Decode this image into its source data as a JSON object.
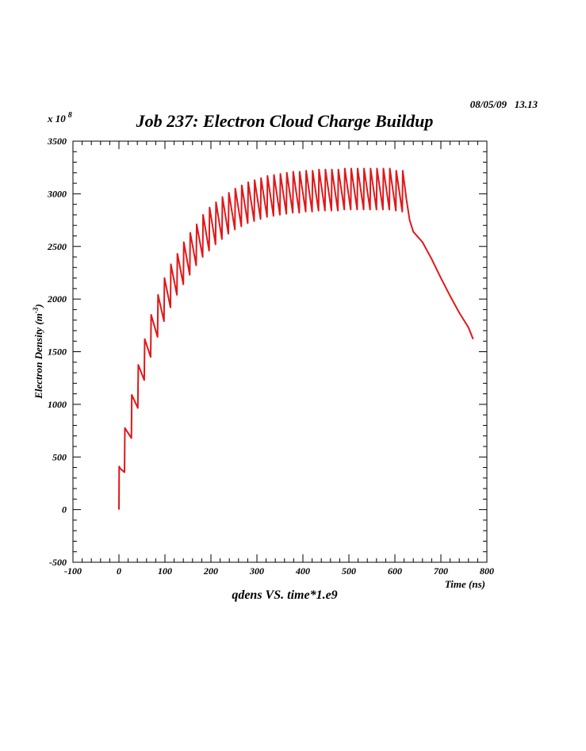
{
  "chart_data": {
    "type": "line",
    "date_stamp": "08/05/09   13.13",
    "title": "Job 237: Electron Cloud Charge Buildup",
    "caption": "qdens VS. time*1.e9",
    "xlabel": "Time (ns)",
    "ylabel_text": "Electron Density (m",
    "ylabel_sup": "-3",
    "ylabel_close": ")",
    "y_multiplier_text": "x 10",
    "y_multiplier_exp": "8",
    "xlim": [
      -100,
      800
    ],
    "ylim": [
      -500,
      3500
    ],
    "x_ticks": [
      -100,
      0,
      100,
      200,
      300,
      400,
      500,
      600,
      700,
      800
    ],
    "y_ticks": [
      -500,
      0,
      500,
      1000,
      1500,
      2000,
      2500,
      3000,
      3500
    ],
    "grid": false,
    "colors": {
      "series": "#e0181a",
      "axes": "#000000"
    },
    "series": [
      {
        "x": [
          0,
          0.5,
          3,
          12,
          13,
          27,
          28,
          41,
          42,
          55,
          56,
          69,
          70,
          84,
          85,
          98,
          99,
          112,
          113,
          126,
          127,
          140,
          141,
          154,
          155,
          168,
          169,
          182,
          183,
          196,
          197,
          210,
          211,
          224,
          225,
          238,
          239,
          252,
          253,
          266,
          267,
          280,
          281,
          294,
          295,
          308,
          309,
          322,
          323,
          336,
          337,
          350,
          351,
          364,
          365,
          378,
          379,
          392,
          393,
          406,
          407,
          420,
          421,
          434,
          435,
          448,
          449,
          462,
          463,
          476,
          477,
          490,
          491,
          504,
          505,
          518,
          519,
          532,
          533,
          546,
          547,
          560,
          561,
          574,
          575,
          588,
          589,
          602,
          603,
          616,
          617,
          625,
          632,
          640,
          660,
          680,
          700,
          720,
          740,
          760,
          770
        ],
        "y": [
          0,
          410,
          390,
          355,
          775,
          680,
          1090,
          965,
          1375,
          1230,
          1620,
          1450,
          1850,
          1640,
          2040,
          1790,
          2200,
          1920,
          2330,
          2040,
          2430,
          2140,
          2540,
          2230,
          2630,
          2320,
          2710,
          2400,
          2800,
          2460,
          2870,
          2520,
          2920,
          2570,
          2970,
          2620,
          3010,
          2660,
          3050,
          2690,
          3080,
          2720,
          3110,
          2740,
          3130,
          2760,
          3150,
          2780,
          3170,
          2790,
          3180,
          2800,
          3190,
          2810,
          3200,
          2820,
          3210,
          2820,
          3210,
          2830,
          3220,
          2830,
          3220,
          2840,
          3230,
          2840,
          3230,
          2840,
          3230,
          2840,
          3230,
          2850,
          3240,
          2850,
          3240,
          2850,
          3240,
          2850,
          3240,
          2850,
          3240,
          2850,
          3240,
          2850,
          3240,
          2850,
          3240,
          2840,
          3220,
          2830,
          3220,
          2950,
          2750,
          2640,
          2540,
          2380,
          2200,
          2030,
          1870,
          1730,
          1620
        ]
      }
    ]
  }
}
